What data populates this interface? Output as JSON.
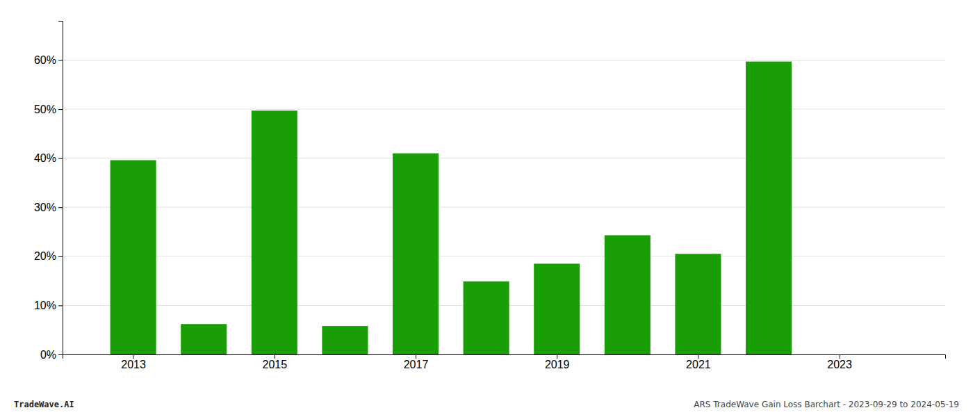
{
  "chart_data": {
    "type": "bar",
    "x": [
      2013,
      2014,
      2015,
      2016,
      2017,
      2018,
      2019,
      2020,
      2021,
      2022,
      2023
    ],
    "values": [
      0.396,
      0.062,
      0.497,
      0.058,
      0.41,
      0.149,
      0.185,
      0.243,
      0.205,
      0.597,
      0.0
    ],
    "color": "#1a9e06",
    "xlim": [
      2012.0,
      2024.5
    ],
    "ylim": [
      0.0,
      0.68
    ],
    "xticks": [
      2013,
      2015,
      2017,
      2019,
      2021,
      2023
    ],
    "yticks": [
      {
        "value": 0.0,
        "label": "0%"
      },
      {
        "value": 0.1,
        "label": "10%"
      },
      {
        "value": 0.2,
        "label": "20%"
      },
      {
        "value": 0.3,
        "label": "30%"
      },
      {
        "value": 0.4,
        "label": "40%"
      },
      {
        "value": 0.5,
        "label": "50%"
      },
      {
        "value": 0.6,
        "label": "60%"
      }
    ],
    "grid": true,
    "annotations": [
      "TradeWave.AI",
      "ARS TradeWave Gain Loss Barchart - 2023-09-29 to 2024-05-19"
    ]
  }
}
